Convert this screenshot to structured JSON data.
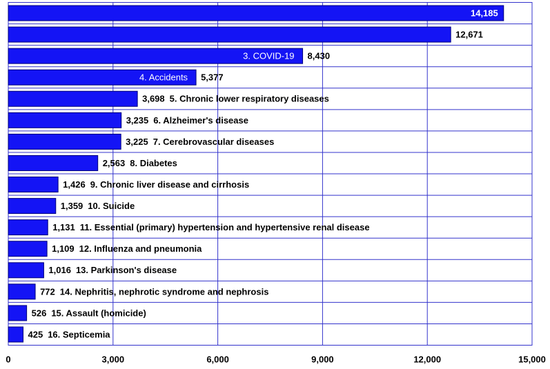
{
  "chart_data": {
    "type": "bar",
    "orientation": "horizontal",
    "categories": [
      null,
      null,
      "3. COVID-19",
      "4. Accidents",
      "5. Chronic lower respiratory diseases",
      "6. Alzheimer's disease",
      "7. Cerebrovascular diseases",
      "8. Diabetes",
      "9. Chronic liver disease and cirrhosis",
      "10. Suicide",
      "11. Essential (primary) hypertension and hypertensive renal disease",
      "12. Influenza and pneumonia",
      "13. Parkinson's disease",
      "14. Nephritis, nephrotic syndrome and nephrosis",
      "15. Assault (homicide)",
      "16. Septicemia"
    ],
    "values": [
      14185,
      12671,
      8430,
      5377,
      3698,
      3235,
      3225,
      2563,
      1426,
      1359,
      1131,
      1109,
      1016,
      772,
      526,
      425
    ],
    "value_labels": [
      "14,185",
      "12,671",
      "8,430",
      "5,377",
      "3,698",
      "3,235",
      "3,225",
      "2,563",
      "1,426",
      "1,359",
      "1,131",
      "1,109",
      "1,016",
      "772",
      "526",
      "425"
    ],
    "color": "#1414f5",
    "xlim": [
      0,
      15000
    ],
    "xticks": [
      0,
      {
        "value": 3000,
        "label": "3,000"
      },
      {
        "value": 6000,
        "label": "6,000"
      },
      {
        "value": 9000,
        "label": "9,000"
      },
      {
        "value": 12000,
        "label": "12,000"
      },
      {
        "value": 15000,
        "label": "15,000"
      }
    ],
    "grid": true
  }
}
